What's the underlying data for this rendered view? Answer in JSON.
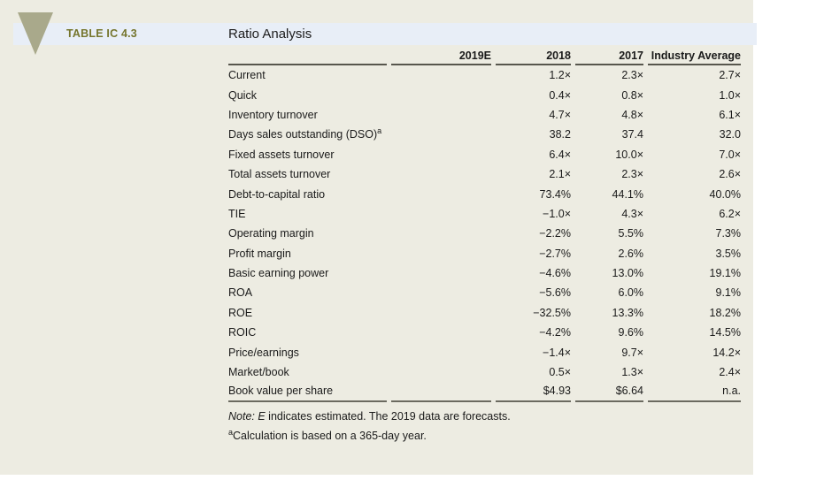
{
  "header": {
    "table_label": "TABLE IC 4.3",
    "title": "Ratio Analysis"
  },
  "colors": {
    "panel_bg": "#edece2",
    "band_bg": "#e8eef7",
    "accent_olive": "#75752d",
    "triangle": "#a9a98b",
    "text": "#1a1a1a",
    "header_rule": "#57564d",
    "bottom_rule": "#6b6a60"
  },
  "table": {
    "columns": [
      "",
      "2019E",
      "2018",
      "2017",
      "Industry Average"
    ],
    "rows": [
      {
        "label": "Current",
        "sup": "",
        "values": [
          "",
          "1.2×",
          "2.3×",
          "2.7×"
        ]
      },
      {
        "label": "Quick",
        "sup": "",
        "values": [
          "",
          "0.4×",
          "0.8×",
          "1.0×"
        ]
      },
      {
        "label": "Inventory turnover",
        "sup": "",
        "values": [
          "",
          "4.7×",
          "4.8×",
          "6.1×"
        ]
      },
      {
        "label": "Days sales outstanding (DSO)",
        "sup": "a",
        "values": [
          "",
          "38.2",
          "37.4",
          "32.0"
        ]
      },
      {
        "label": "Fixed assets turnover",
        "sup": "",
        "values": [
          "",
          "6.4×",
          "10.0×",
          "7.0×"
        ]
      },
      {
        "label": "Total assets turnover",
        "sup": "",
        "values": [
          "",
          "2.1×",
          "2.3×",
          "2.6×"
        ]
      },
      {
        "label": "Debt-to-capital ratio",
        "sup": "",
        "values": [
          "",
          "73.4%",
          "44.1%",
          "40.0%"
        ]
      },
      {
        "label": "TIE",
        "sup": "",
        "values": [
          "",
          "−1.0×",
          "4.3×",
          "6.2×"
        ]
      },
      {
        "label": "Operating margin",
        "sup": "",
        "values": [
          "",
          "−2.2%",
          "5.5%",
          "7.3%"
        ]
      },
      {
        "label": "Profit margin",
        "sup": "",
        "values": [
          "",
          "−2.7%",
          "2.6%",
          "3.5%"
        ]
      },
      {
        "label": "Basic earning power",
        "sup": "",
        "values": [
          "",
          "−4.6%",
          "13.0%",
          "19.1%"
        ]
      },
      {
        "label": "ROA",
        "sup": "",
        "values": [
          "",
          "−5.6%",
          "6.0%",
          "9.1%"
        ]
      },
      {
        "label": "ROE",
        "sup": "",
        "values": [
          "",
          "−32.5%",
          "13.3%",
          "18.2%"
        ]
      },
      {
        "label": "ROIC",
        "sup": "",
        "values": [
          "",
          "−4.2%",
          "9.6%",
          "14.5%"
        ]
      },
      {
        "label": "Price/earnings",
        "sup": "",
        "values": [
          "",
          "−1.4×",
          "9.7×",
          "14.2×"
        ]
      },
      {
        "label": "Market/book",
        "sup": "",
        "values": [
          "",
          "0.5×",
          "1.3×",
          "2.4×"
        ]
      },
      {
        "label": "Book value per share",
        "sup": "",
        "values": [
          "",
          "$4.93",
          "$6.64",
          "n.a."
        ]
      }
    ]
  },
  "notes": {
    "note1_italic": "Note: E",
    "note1_rest": " indicates estimated. The 2019 data are forecasts.",
    "note2_sup": "a",
    "note2_rest": "Calculation is based on a 365-day year."
  }
}
